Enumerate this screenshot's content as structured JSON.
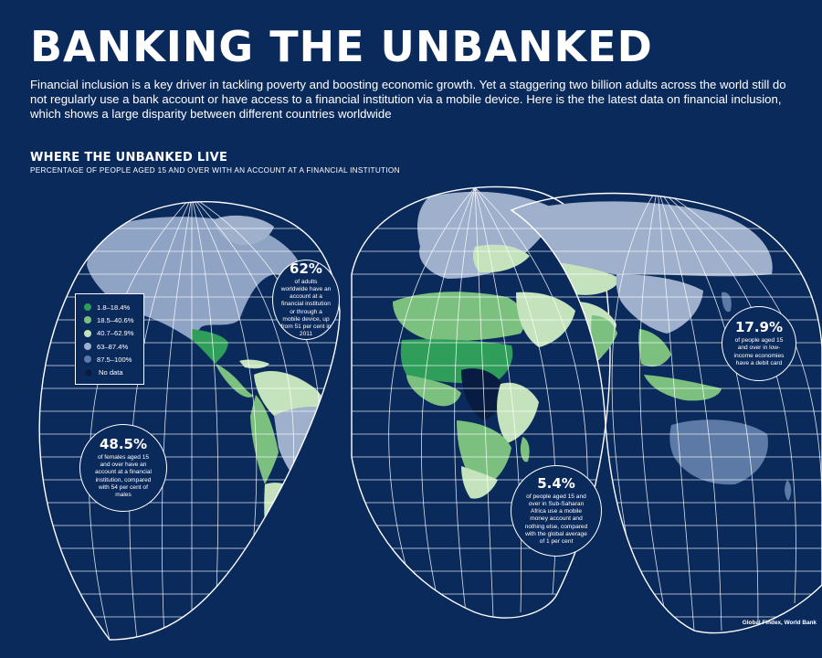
{
  "header": {
    "title": "BANKING THE UNBANKED",
    "intro": "Financial inclusion is a key driver in tackling poverty and boosting economic growth. Yet a staggering two billion adults across the world still do not regularly use a bank account or have access to a financial institution via a mobile device. Here is the the latest data on financial inclusion, which shows a large disparity between different countries worldwide"
  },
  "map": {
    "title": "WHERE THE UNBANKED LIVE",
    "subtitle": "PERCENTAGE OF PEOPLE AGED 15 AND OVER WITH AN ACCOUNT AT A FINANCIAL INSTITUTION",
    "legend": [
      {
        "label": "1.8–18.4%",
        "color": "#2f9e5a"
      },
      {
        "label": "18.5–40.6%",
        "color": "#7cc07f"
      },
      {
        "label": "40.7–62.9%",
        "color": "#c4e3bd"
      },
      {
        "label": "63–87.4%",
        "color": "#9fb0cc"
      },
      {
        "label": "87.5–100%",
        "color": "#5d7aa6"
      },
      {
        "label": "No data",
        "color": "#071c40"
      }
    ]
  },
  "callouts": {
    "adults_worldwide": {
      "stat": "62%",
      "text": "of adults worldwide have an account at a financial institution or through a mobile device, up from 51 per cent in 2011"
    },
    "debit_card": {
      "stat": "17.9%",
      "text": "of people aged 15 and over in low-income economies have a debit card"
    },
    "females": {
      "stat": "48.5%",
      "text": "of females aged 15 and over have an account at a financial institution, compared with 54 per cent of males"
    },
    "mobile_money": {
      "stat": "5.4%",
      "text": "of people aged 15 and over in Sub-Saharan Africa use a mobile money account and nothing else, compared with the global average of 1 per cent"
    }
  },
  "source": "Global Findex, World Bank"
}
